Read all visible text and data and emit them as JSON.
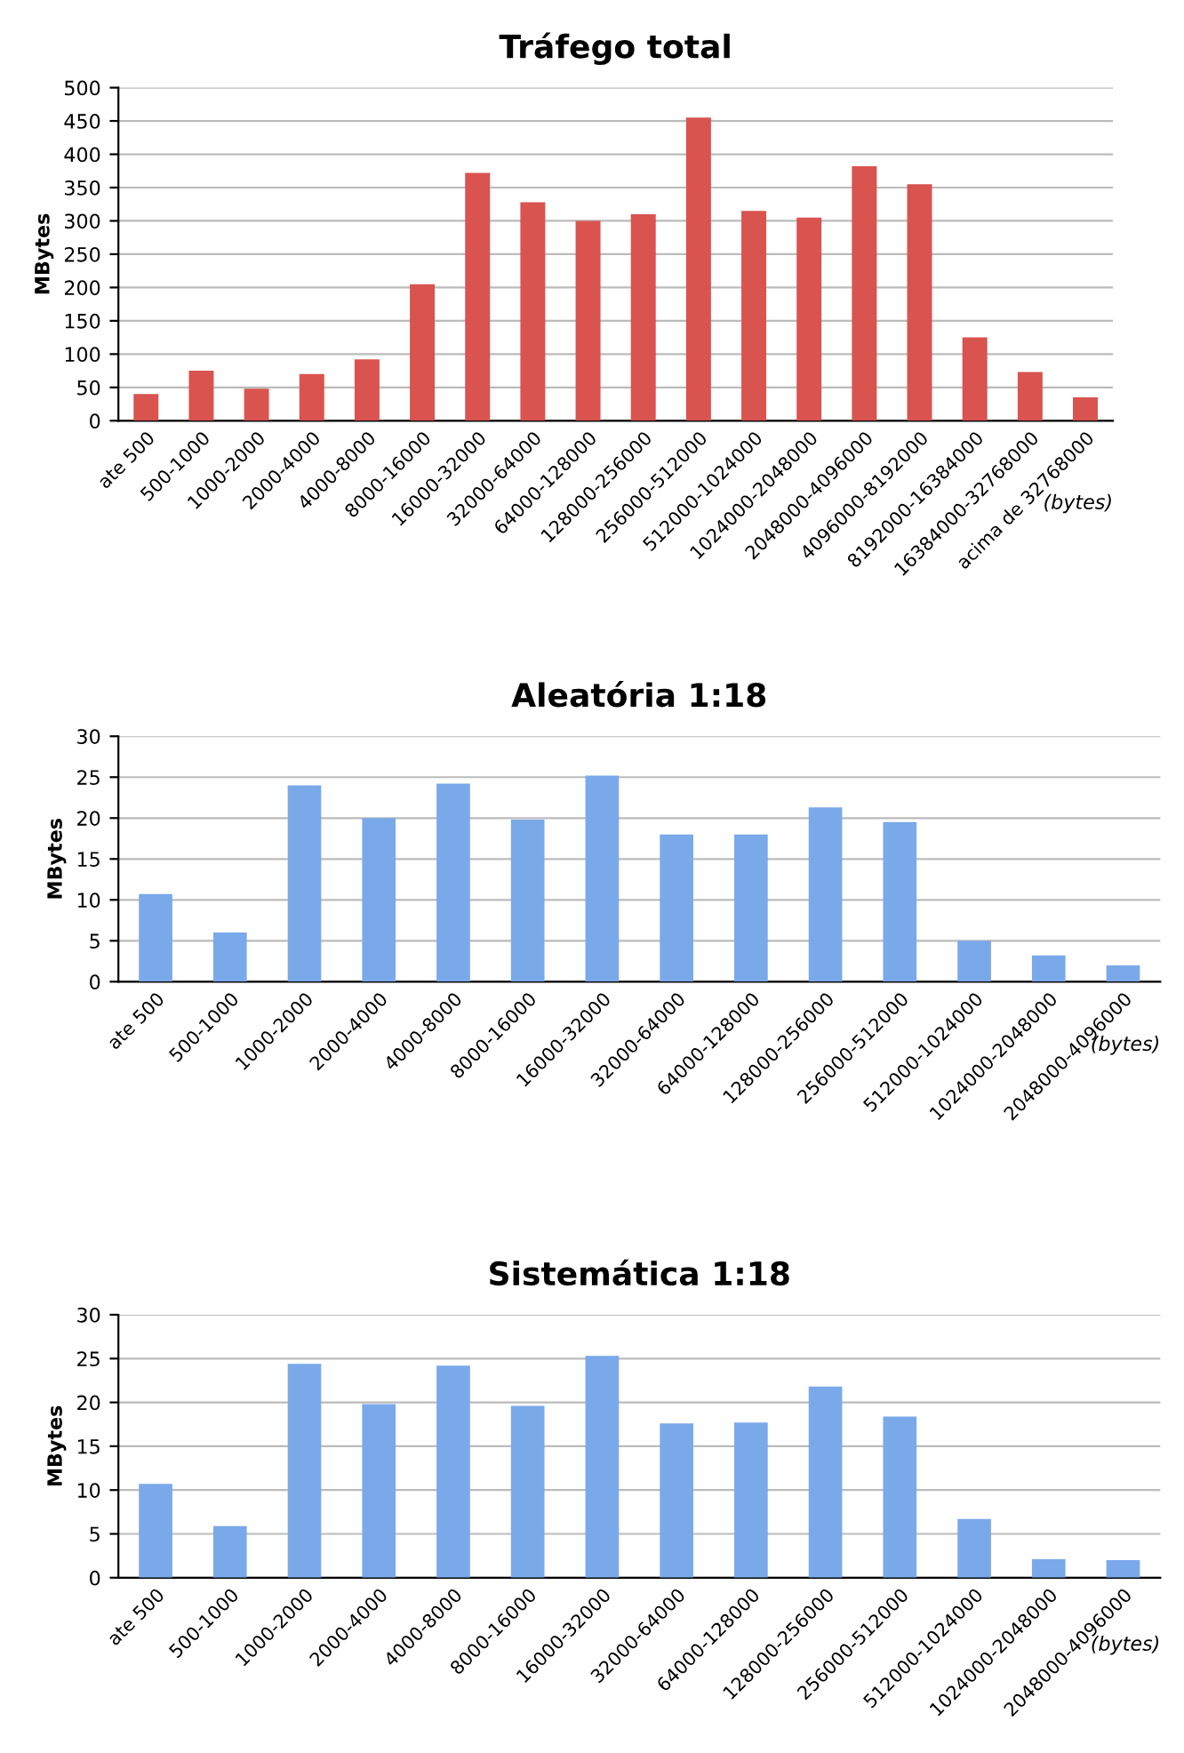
{
  "chart_data": [
    {
      "type": "bar",
      "title": "Tráfego total",
      "ylabel": "MBytes",
      "xlabel": "(bytes)",
      "categories": [
        "ate 500",
        "500-1000",
        "1000-2000",
        "2000-4000",
        "4000-8000",
        "8000-16000",
        "16000-32000",
        "32000-64000",
        "64000-128000",
        "128000-256000",
        "256000-512000",
        "512000-1024000",
        "1024000-2048000",
        "2048000-4096000",
        "4096000-8192000",
        "8192000-16384000",
        "16384000-32768000",
        "acima de 32768000"
      ],
      "values": [
        40,
        75,
        48,
        70,
        92,
        205,
        372,
        328,
        300,
        310,
        455,
        315,
        305,
        382,
        355,
        125,
        73,
        35
      ],
      "color": "#d9534f",
      "ylim": [
        0,
        500
      ],
      "yticks": [
        0,
        50,
        100,
        150,
        200,
        250,
        300,
        350,
        400,
        450,
        500
      ],
      "grid": "y"
    },
    {
      "type": "bar",
      "title": "Aleatória 1:18",
      "ylabel": "MBytes",
      "xlabel": "(bytes)",
      "categories": [
        "ate 500",
        "500-1000",
        "1000-2000",
        "2000-4000",
        "4000-8000",
        "8000-16000",
        "16000-32000",
        "32000-64000",
        "64000-128000",
        "128000-256000",
        "256000-512000",
        "512000-1024000",
        "1024000-2048000",
        "2048000-4096000"
      ],
      "values": [
        10.7,
        6,
        24,
        20,
        24.2,
        19.8,
        25.2,
        18,
        18,
        21.3,
        19.5,
        5,
        3.2,
        2
      ],
      "color": "#7aa9ea",
      "ylim": [
        0,
        30
      ],
      "yticks": [
        0,
        5,
        10,
        15,
        20,
        25,
        30
      ],
      "grid": "y"
    },
    {
      "type": "bar",
      "title": "Sistemática 1:18",
      "ylabel": "MBytes",
      "xlabel": "(bytes)",
      "categories": [
        "ate 500",
        "500-1000",
        "1000-2000",
        "2000-4000",
        "4000-8000",
        "8000-16000",
        "16000-32000",
        "32000-64000",
        "64000-128000",
        "128000-256000",
        "256000-512000",
        "512000-1024000",
        "1024000-2048000",
        "2048000-4096000"
      ],
      "values": [
        10.7,
        5.9,
        24.4,
        19.8,
        24.2,
        19.6,
        25.3,
        17.6,
        17.7,
        21.8,
        18.4,
        6.7,
        2.1,
        2.0
      ],
      "color": "#7aa9ea",
      "ylim": [
        0,
        30
      ],
      "yticks": [
        0,
        5,
        10,
        15,
        20,
        25,
        30
      ],
      "grid": "y"
    }
  ]
}
